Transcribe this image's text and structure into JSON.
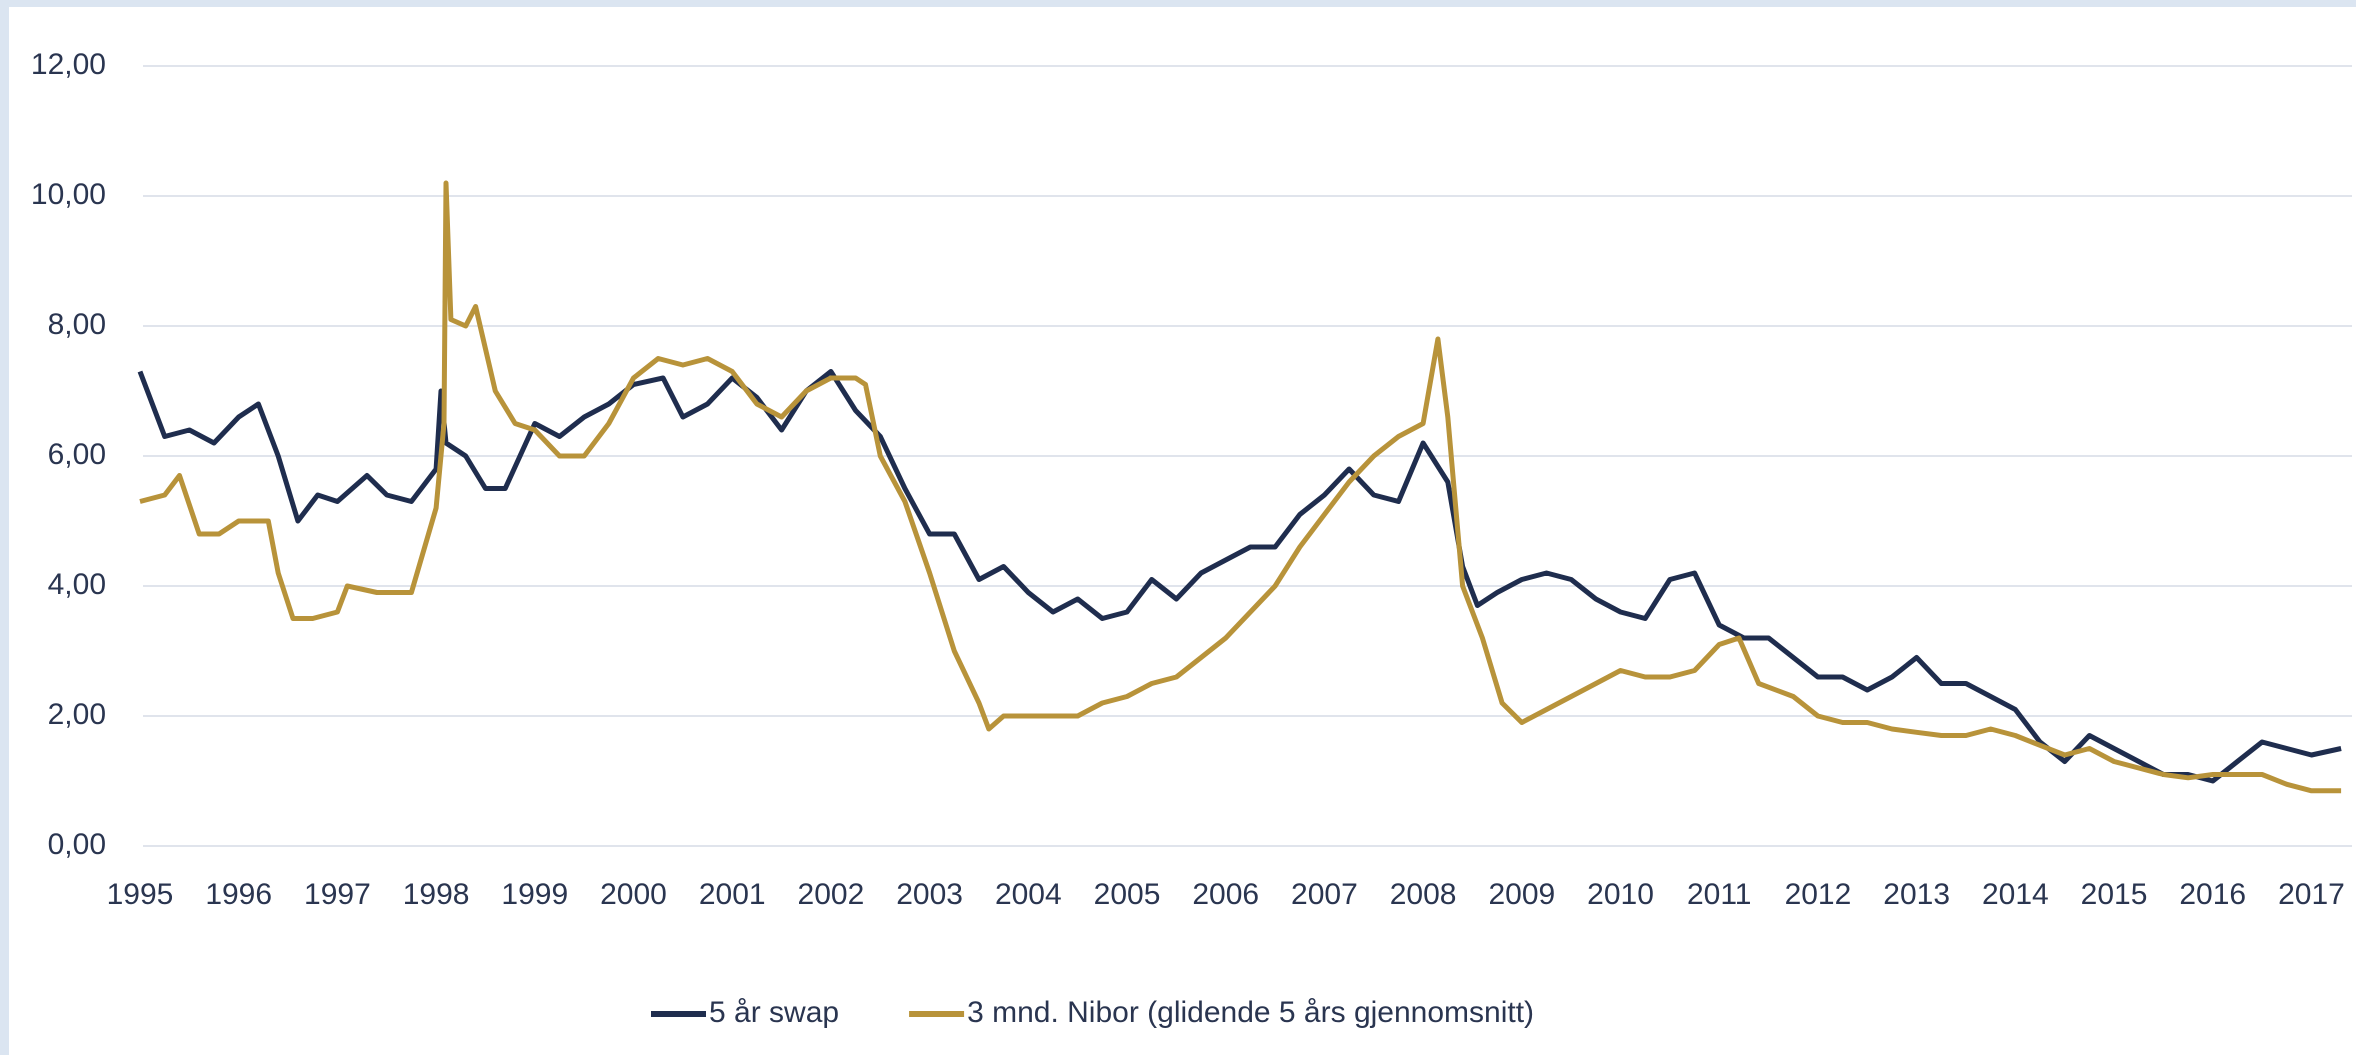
{
  "chart_data": {
    "type": "line",
    "xlim": [
      1995,
      2017.35
    ],
    "xticks": [
      1995,
      1996,
      1997,
      1998,
      1999,
      2000,
      2001,
      2002,
      2003,
      2004,
      2005,
      2006,
      2007,
      2008,
      2009,
      2010,
      2011,
      2012,
      2013,
      2014,
      2015,
      2016,
      2017
    ],
    "ylim": [
      0,
      12
    ],
    "yticks": [
      {
        "value": 0,
        "label": "0,00"
      },
      {
        "value": 2,
        "label": "2,00"
      },
      {
        "value": 4,
        "label": "4,00"
      },
      {
        "value": 6,
        "label": "6,00"
      },
      {
        "value": 8,
        "label": "8,00"
      },
      {
        "value": 10,
        "label": "10,00"
      },
      {
        "value": 12,
        "label": "12,00"
      }
    ],
    "grid": true,
    "legend": "bottom",
    "series": [
      {
        "name": "5 år swap",
        "color": "#1f2d4e",
        "x": [
          1995.0,
          1995.25,
          1995.5,
          1995.75,
          1996.0,
          1996.2,
          1996.4,
          1996.6,
          1996.8,
          1997.0,
          1997.3,
          1997.5,
          1997.75,
          1998.0,
          1998.05,
          1998.1,
          1998.3,
          1998.5,
          1998.7,
          1999.0,
          1999.25,
          1999.5,
          1999.75,
          2000.0,
          2000.3,
          2000.5,
          2000.75,
          2001.0,
          2001.25,
          2001.5,
          2001.75,
          2002.0,
          2002.25,
          2002.5,
          2002.75,
          2003.0,
          2003.25,
          2003.5,
          2003.75,
          2004.0,
          2004.25,
          2004.5,
          2004.75,
          2005.0,
          2005.25,
          2005.5,
          2005.75,
          2006.0,
          2006.25,
          2006.5,
          2006.75,
          2007.0,
          2007.25,
          2007.5,
          2007.75,
          2008.0,
          2008.25,
          2008.4,
          2008.55,
          2008.75,
          2009.0,
          2009.25,
          2009.5,
          2009.75,
          2010.0,
          2010.25,
          2010.5,
          2010.75,
          2011.0,
          2011.25,
          2011.5,
          2011.75,
          2012.0,
          2012.25,
          2012.5,
          2012.75,
          2013.0,
          2013.25,
          2013.5,
          2013.75,
          2014.0,
          2014.25,
          2014.5,
          2014.75,
          2015.0,
          2015.25,
          2015.5,
          2015.75,
          2016.0,
          2016.25,
          2016.5,
          2016.75,
          2017.0,
          2017.3
        ],
        "values": [
          7.3,
          6.3,
          6.4,
          6.2,
          6.6,
          6.8,
          6.0,
          5.0,
          5.4,
          5.3,
          5.7,
          5.4,
          5.3,
          5.8,
          7.0,
          6.2,
          6.0,
          5.5,
          5.5,
          6.5,
          6.3,
          6.6,
          6.8,
          7.1,
          7.2,
          6.6,
          6.8,
          7.2,
          6.9,
          6.4,
          7.0,
          7.3,
          6.7,
          6.3,
          5.5,
          4.8,
          4.8,
          4.1,
          4.3,
          3.9,
          3.6,
          3.8,
          3.5,
          3.6,
          4.1,
          3.8,
          4.2,
          4.4,
          4.6,
          4.6,
          5.1,
          5.4,
          5.8,
          5.4,
          5.3,
          6.2,
          5.6,
          4.3,
          3.7,
          3.9,
          4.1,
          4.2,
          4.1,
          3.8,
          3.6,
          3.5,
          4.1,
          4.2,
          3.4,
          3.2,
          3.2,
          2.9,
          2.6,
          2.6,
          2.4,
          2.6,
          2.9,
          2.5,
          2.5,
          2.3,
          2.1,
          1.6,
          1.3,
          1.7,
          1.5,
          1.3,
          1.1,
          1.1,
          1.0,
          1.3,
          1.6,
          1.5,
          1.4,
          1.5
        ]
      },
      {
        "name": "3 mnd. Nibor (glidende 5 års gjennomsnitt)",
        "color": "#b8933a",
        "x": [
          1995.0,
          1995.25,
          1995.4,
          1995.6,
          1995.8,
          1996.0,
          1996.3,
          1996.4,
          1996.55,
          1996.75,
          1997.0,
          1997.1,
          1997.4,
          1997.75,
          1998.0,
          1998.08,
          1998.1,
          1998.15,
          1998.3,
          1998.4,
          1998.6,
          1998.8,
          1999.0,
          1999.25,
          1999.5,
          1999.75,
          2000.0,
          2000.25,
          2000.5,
          2000.75,
          2001.0,
          2001.25,
          2001.5,
          2001.75,
          2002.0,
          2002.25,
          2002.35,
          2002.5,
          2002.75,
          2003.0,
          2003.25,
          2003.5,
          2003.6,
          2003.75,
          2004.0,
          2004.25,
          2004.5,
          2004.75,
          2005.0,
          2005.25,
          2005.5,
          2005.75,
          2006.0,
          2006.25,
          2006.5,
          2006.75,
          2007.0,
          2007.25,
          2007.5,
          2007.75,
          2008.0,
          2008.15,
          2008.25,
          2008.4,
          2008.6,
          2008.8,
          2009.0,
          2009.25,
          2009.5,
          2009.75,
          2010.0,
          2010.25,
          2010.5,
          2010.75,
          2011.0,
          2011.2,
          2011.4,
          2011.75,
          2012.0,
          2012.25,
          2012.5,
          2012.75,
          2013.0,
          2013.25,
          2013.5,
          2013.75,
          2014.0,
          2014.25,
          2014.5,
          2014.75,
          2015.0,
          2015.25,
          2015.5,
          2015.75,
          2016.0,
          2016.25,
          2016.5,
          2016.75,
          2017.0,
          2017.3
        ],
        "values": [
          5.3,
          5.4,
          5.7,
          4.8,
          4.8,
          5.0,
          5.0,
          4.2,
          3.5,
          3.5,
          3.6,
          4.0,
          3.9,
          3.9,
          5.2,
          6.5,
          10.2,
          8.1,
          8.0,
          8.3,
          7.0,
          6.5,
          6.4,
          6.0,
          6.0,
          6.5,
          7.2,
          7.5,
          7.4,
          7.5,
          7.3,
          6.8,
          6.6,
          7.0,
          7.2,
          7.2,
          7.1,
          6.0,
          5.3,
          4.2,
          3.0,
          2.2,
          1.8,
          2.0,
          2.0,
          2.0,
          2.0,
          2.2,
          2.3,
          2.5,
          2.6,
          2.9,
          3.2,
          3.6,
          4.0,
          4.6,
          5.1,
          5.6,
          6.0,
          6.3,
          6.5,
          7.8,
          6.6,
          4.0,
          3.2,
          2.2,
          1.9,
          2.1,
          2.3,
          2.5,
          2.7,
          2.6,
          2.6,
          2.7,
          3.1,
          3.2,
          2.5,
          2.3,
          2.0,
          1.9,
          1.9,
          1.8,
          1.75,
          1.7,
          1.7,
          1.8,
          1.7,
          1.55,
          1.4,
          1.5,
          1.3,
          1.2,
          1.1,
          1.05,
          1.1,
          1.1,
          1.1,
          0.95,
          0.85,
          0.85
        ]
      }
    ]
  }
}
